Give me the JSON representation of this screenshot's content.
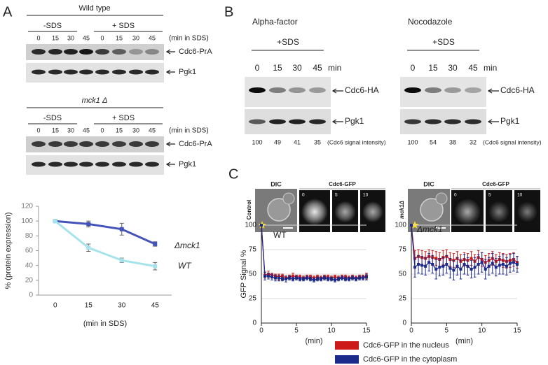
{
  "panel_a": {
    "letter": "A",
    "wild_type": {
      "title": "Wild type",
      "groups": [
        "-SDS",
        "+ SDS"
      ],
      "lanes": [
        "0",
        "15",
        "30",
        "45",
        "0",
        "15",
        "30",
        "45"
      ],
      "unit": "(min in SDS)",
      "bands": [
        "Cdc6-PrA",
        "Pgk1"
      ]
    },
    "mck1": {
      "title": "mck1 Δ",
      "groups": [
        "-SDS",
        "+ SDS"
      ],
      "lanes": [
        "0",
        "15",
        "30",
        "45",
        "0",
        "15",
        "30",
        "45"
      ],
      "unit": "(min in SDS)",
      "bands": [
        "Cdc6-PrA",
        "Pgk1"
      ]
    }
  },
  "panel_b": {
    "letter": "B",
    "blots": [
      {
        "treatment": "Alpha-factor",
        "condition": "+SDS",
        "lanes": [
          "0",
          "15",
          "30",
          "45"
        ],
        "unit": "min",
        "bands": [
          "Cdc6-HA",
          "Pgk1"
        ],
        "intensities": [
          100,
          49,
          41,
          35
        ],
        "intensity_label": "(Cdc6 signal intensity)"
      },
      {
        "treatment": "Nocodazole",
        "condition": "+SDS",
        "lanes": [
          "0",
          "15",
          "30",
          "45"
        ],
        "unit": "min",
        "bands": [
          "Cdc6-HA",
          "Pgk1"
        ],
        "intensities": [
          100,
          54,
          38,
          32
        ],
        "intensity_label": "(Cdc6 signal intensity)"
      }
    ]
  },
  "panel_c": {
    "letter": "C",
    "strains": [
      {
        "label": "Control",
        "dic": "DIC",
        "gfp": "Cdc6-GFP",
        "times": [
          "0",
          "5",
          "10"
        ]
      },
      {
        "label": "mck1Δ",
        "dic": "DIC",
        "gfp": "Cdc6-GFP",
        "times": [
          "0",
          "5",
          "10"
        ]
      }
    ]
  },
  "chart_data": [
    {
      "type": "line",
      "x_label": "(min in SDS)",
      "y_label": "% (protein expression)",
      "categories": [
        "0",
        "15",
        "30",
        "45"
      ],
      "ylim": [
        0,
        120
      ],
      "yticks": [
        0,
        20,
        40,
        60,
        80,
        100,
        120
      ],
      "grid": false,
      "series": [
        {
          "name": "Δmck1",
          "color": "#4353b8",
          "values": [
            100,
            96,
            89,
            69
          ],
          "errors": [
            0,
            4,
            8,
            3
          ]
        },
        {
          "name": "WT",
          "color": "#a6e3ea",
          "values": [
            100,
            64,
            47,
            39
          ],
          "errors": [
            0,
            5,
            3,
            5
          ]
        }
      ]
    },
    {
      "type": "line",
      "title": "WT",
      "x_label": "(min)",
      "y_label": "GFP Signal %",
      "x": [
        0,
        0.5,
        1,
        1.5,
        2,
        2.5,
        3,
        3.5,
        4,
        4.5,
        5,
        5.5,
        6,
        6.5,
        7,
        7.5,
        8,
        8.5,
        9,
        9.5,
        10,
        10.5,
        11,
        11.5,
        12,
        12.5,
        13,
        13.5,
        14,
        14.5,
        15
      ],
      "xlim": [
        0,
        15
      ],
      "xticks": [
        0,
        5,
        10,
        15
      ],
      "ylim": [
        0,
        100
      ],
      "yticks": [
        0,
        25,
        50,
        75,
        100
      ],
      "grid": true,
      "series": [
        {
          "color": "#cc1a1a",
          "values": [
            100,
            49,
            50,
            49,
            48,
            47,
            48,
            46,
            47,
            48,
            47,
            47,
            46,
            47,
            47,
            46,
            47,
            46,
            47,
            47,
            46,
            47,
            46,
            47,
            47,
            46,
            47,
            46,
            47,
            47,
            48
          ],
          "errors": [
            0,
            3,
            3,
            2,
            2,
            3,
            2,
            2,
            2,
            3,
            2,
            2,
            2,
            2,
            2,
            2,
            2,
            2,
            2,
            2,
            2,
            2,
            2,
            2,
            2,
            2,
            2,
            2,
            2,
            2,
            3
          ]
        },
        {
          "color": "#1c2a8c",
          "values": [
            100,
            48,
            48,
            47,
            46,
            46,
            45,
            45,
            46,
            45,
            46,
            45,
            45,
            46,
            45,
            44,
            45,
            45,
            46,
            45,
            45,
            44,
            45,
            46,
            45,
            45,
            46,
            45,
            46,
            46,
            47
          ],
          "errors": [
            0,
            4,
            3,
            3,
            3,
            3,
            2,
            3,
            2,
            2,
            2,
            2,
            2,
            2,
            2,
            2,
            2,
            2,
            2,
            2,
            2,
            2,
            2,
            2,
            2,
            2,
            2,
            2,
            2,
            2,
            3
          ]
        }
      ]
    },
    {
      "type": "line",
      "title": "Δmck1",
      "x_label": "(min)",
      "x": [
        0,
        0.5,
        1,
        1.5,
        2,
        2.5,
        3,
        3.5,
        4,
        4.5,
        5,
        5.5,
        6,
        6.5,
        7,
        7.5,
        8,
        8.5,
        9,
        9.5,
        10,
        10.5,
        11,
        11.5,
        12,
        12.5,
        13,
        13.5,
        14,
        14.5,
        15
      ],
      "xlim": [
        0,
        15
      ],
      "xticks": [
        0,
        5,
        10,
        15
      ],
      "ylim": [
        0,
        100
      ],
      "yticks": [
        0,
        25,
        50,
        75,
        100
      ],
      "grid": true,
      "series": [
        {
          "name": "Cdc6-GFP in the nucleus",
          "color": "#cc1a1a",
          "values": [
            100,
            66,
            68,
            67,
            66,
            68,
            67,
            66,
            65,
            67,
            68,
            65,
            64,
            66,
            63,
            65,
            64,
            66,
            63,
            67,
            65,
            62,
            64,
            66,
            63,
            65,
            64,
            63,
            64,
            65,
            62
          ],
          "errors": [
            0,
            8,
            7,
            7,
            7,
            7,
            7,
            7,
            7,
            7,
            7,
            7,
            7,
            7,
            7,
            7,
            7,
            7,
            7,
            7,
            7,
            7,
            7,
            7,
            7,
            7,
            7,
            7,
            7,
            7,
            6
          ]
        },
        {
          "name": "Cdc6-GFP in the cytoplasm",
          "color": "#1c2a8c",
          "values": [
            100,
            57,
            60,
            59,
            58,
            62,
            60,
            55,
            57,
            58,
            60,
            56,
            54,
            58,
            55,
            60,
            58,
            55,
            57,
            60,
            62,
            55,
            58,
            61,
            57,
            59,
            60,
            58,
            61,
            62,
            60
          ],
          "errors": [
            0,
            10,
            9,
            9,
            9,
            9,
            9,
            10,
            9,
            9,
            9,
            10,
            10,
            9,
            10,
            10,
            9,
            9,
            10,
            10,
            10,
            10,
            9,
            10,
            9,
            9,
            10,
            9,
            9,
            9,
            8
          ]
        }
      ]
    }
  ]
}
